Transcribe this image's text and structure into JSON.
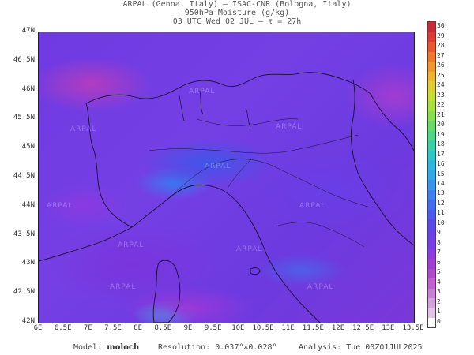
{
  "header": {
    "line1": "ARPAL (Genoa, Italy)  —  ISAC-CNR (Bologna, Italy)",
    "line2": "950hPa Moisture (g/kg)",
    "line3": "03 UTC Wed 02 JUL  —  τ = 27h"
  },
  "map": {
    "lat_labels": [
      "47N",
      "46.5N",
      "46N",
      "45.5N",
      "45N",
      "44.5N",
      "44N",
      "43.5N",
      "43N",
      "42.5N",
      "42N"
    ],
    "lon_labels": [
      "6E",
      "6.5E",
      "7E",
      "7.5E",
      "8E",
      "8.5E",
      "9E",
      "9.5E",
      "10E",
      "10.5E",
      "11E",
      "11.5E",
      "12E",
      "12.5E",
      "13E",
      "13.5E"
    ],
    "watermark": "ARPAL"
  },
  "colorbar": {
    "labels": [
      "0",
      "1",
      "2",
      "3",
      "4",
      "5",
      "6",
      "7",
      "8",
      "9",
      "10",
      "11",
      "12",
      "13",
      "14",
      "15",
      "16",
      "17",
      "18",
      "19",
      "20",
      "21",
      "22",
      "23",
      "24",
      "25",
      "26",
      "27",
      "28",
      "29",
      "30"
    ],
    "colors": [
      "#ffffff",
      "#e0c2e4",
      "#d3a2dc",
      "#c880d4",
      "#c060d0",
      "#b048cc",
      "#a03cd4",
      "#8c3ce0",
      "#7a3ce6",
      "#6a40e8",
      "#5a48ec",
      "#4a5aee",
      "#3f6cf0",
      "#3a80f0",
      "#3696ec",
      "#30aae6",
      "#2ab8dc",
      "#2cc6c8",
      "#38d0a8",
      "#4cd888",
      "#66dc66",
      "#86e04a",
      "#a6e038",
      "#c6dc30",
      "#e0cc2c",
      "#eeb42c",
      "#f2962c",
      "#f2762c",
      "#ec562c",
      "#e03a30",
      "#c82a3a"
    ]
  },
  "footer": {
    "model_label": "Model:",
    "model_name": "moloch",
    "resolution": "Resolution: 0.037°×0.028°",
    "analysis": "Analysis: Tue 00Z01JUL2025"
  }
}
